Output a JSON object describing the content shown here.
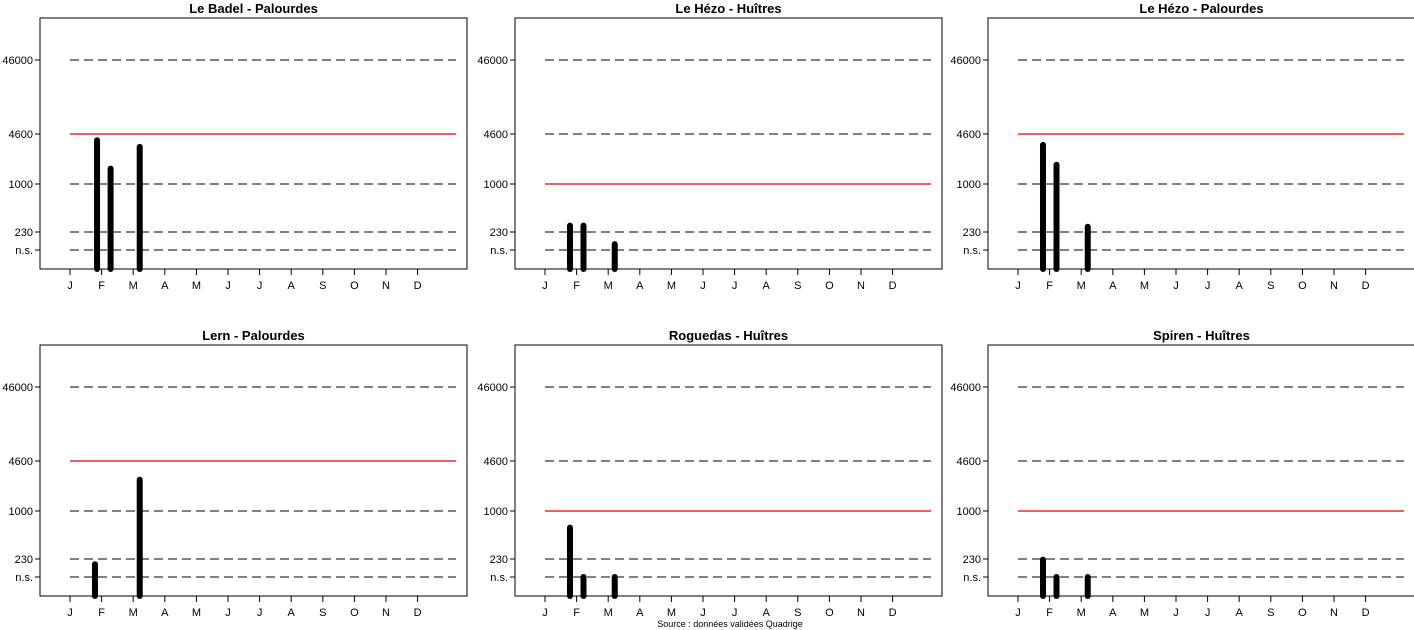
{
  "source": "Source : données validées Quadrige",
  "chart_data": [
    {
      "type": "bar",
      "title": "Le Badel - Palourdes",
      "y_ticks": [
        "n.s.",
        "230",
        "1000",
        "4600",
        "46000"
      ],
      "y_scale": "log",
      "x_ticks": [
        "J",
        "F",
        "M",
        "A",
        "M",
        "J",
        "J",
        "A",
        "S",
        "O",
        "N",
        "D"
      ],
      "dashed_lines": [
        67,
        230,
        1000,
        46000
      ],
      "threshold": 4600,
      "bars": [
        {
          "date": "Jan-26",
          "value": 3800
        },
        {
          "date": "Feb-08",
          "value": 1600
        },
        {
          "date": "Mar-08",
          "value": 3100
        }
      ]
    },
    {
      "type": "bar",
      "title": "Le Hézo - Huîtres",
      "y_ticks": [
        "n.s.",
        "230",
        "1000",
        "4600",
        "46000"
      ],
      "y_scale": "log",
      "x_ticks": [
        "J",
        "F",
        "M",
        "A",
        "M",
        "J",
        "J",
        "A",
        "S",
        "O",
        "N",
        "D"
      ],
      "dashed_lines": [
        67,
        230,
        4600,
        46000
      ],
      "threshold": 1000,
      "bars": [
        {
          "date": "Jan-24",
          "value": 280
        },
        {
          "date": "Feb-06",
          "value": 280
        },
        {
          "date": "Mar-08",
          "value": 100
        }
      ]
    },
    {
      "type": "bar",
      "title": "Le Hézo - Palourdes",
      "y_ticks": [
        "n.s.",
        "230",
        "1000",
        "4600",
        "46000"
      ],
      "y_scale": "log",
      "x_ticks": [
        "J",
        "F",
        "M",
        "A",
        "M",
        "J",
        "J",
        "A",
        "S",
        "O",
        "N",
        "D"
      ],
      "dashed_lines": [
        67,
        230,
        1000,
        46000
      ],
      "threshold": 4600,
      "bars": [
        {
          "date": "Jan-24",
          "value": 3300
        },
        {
          "date": "Feb-06",
          "value": 1800
        },
        {
          "date": "Mar-08",
          "value": 270
        }
      ]
    },
    {
      "type": "bar",
      "title": "Lern - Palourdes",
      "y_ticks": [
        "n.s.",
        "230",
        "1000",
        "4600",
        "46000"
      ],
      "y_scale": "log",
      "x_ticks": [
        "J",
        "F",
        "M",
        "A",
        "M",
        "J",
        "J",
        "A",
        "S",
        "O",
        "N",
        "D"
      ],
      "dashed_lines": [
        67,
        230,
        1000,
        46000
      ],
      "threshold": 4600,
      "bars": [
        {
          "date": "Jan-24",
          "value": 160
        },
        {
          "date": "Mar-08",
          "value": 2600
        }
      ]
    },
    {
      "type": "bar",
      "title": "Roguedas - Huîtres",
      "y_ticks": [
        "n.s.",
        "230",
        "1000",
        "4600",
        "46000"
      ],
      "y_scale": "log",
      "x_ticks": [
        "J",
        "F",
        "M",
        "A",
        "M",
        "J",
        "J",
        "A",
        "S",
        "O",
        "N",
        "D"
      ],
      "dashed_lines": [
        67,
        230,
        4600,
        46000
      ],
      "threshold": 1000,
      "bars": [
        {
          "date": "Jan-24",
          "value": 600
        },
        {
          "date": "Feb-06",
          "value": 67
        },
        {
          "date": "Mar-08",
          "value": 67
        }
      ]
    },
    {
      "type": "bar",
      "title": "Spiren - Huîtres",
      "y_ticks": [
        "n.s.",
        "230",
        "1000",
        "4600",
        "46000"
      ],
      "y_scale": "log",
      "x_ticks": [
        "J",
        "F",
        "M",
        "A",
        "M",
        "J",
        "J",
        "A",
        "S",
        "O",
        "N",
        "D"
      ],
      "dashed_lines": [
        67,
        230,
        4600,
        46000
      ],
      "threshold": 1000,
      "bars": [
        {
          "date": "Jan-24",
          "value": 220
        },
        {
          "date": "Feb-06",
          "value": 67
        },
        {
          "date": "Mar-08",
          "value": 67
        }
      ]
    }
  ]
}
